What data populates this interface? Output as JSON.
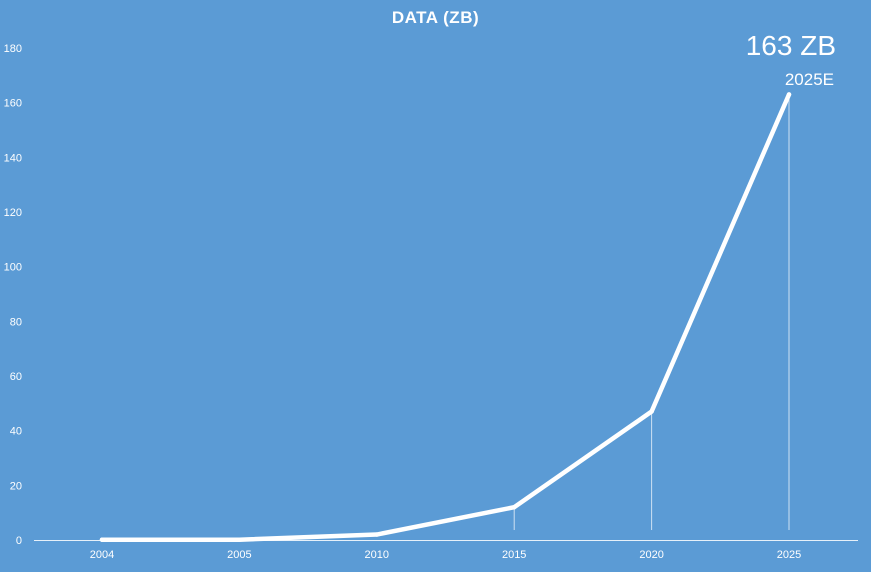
{
  "chart_data": {
    "type": "line",
    "title": "DATA (ZB)",
    "xlabel": "",
    "ylabel": "",
    "categories": [
      "2004",
      "2005",
      "2010",
      "2015",
      "2020",
      "2025"
    ],
    "series": [
      {
        "values": [
          0.1,
          0.1,
          2,
          12,
          47,
          163
        ]
      }
    ],
    "ylim": [
      0,
      180
    ],
    "yticks": [
      0,
      20,
      40,
      60,
      80,
      100,
      120,
      140,
      160,
      180
    ],
    "grid": false,
    "legend": "none",
    "line_color": "#ffffff",
    "background_color": "#5b9bd5",
    "annotation": {
      "value_label": "163 ZB",
      "sub_label": "2025E"
    }
  }
}
